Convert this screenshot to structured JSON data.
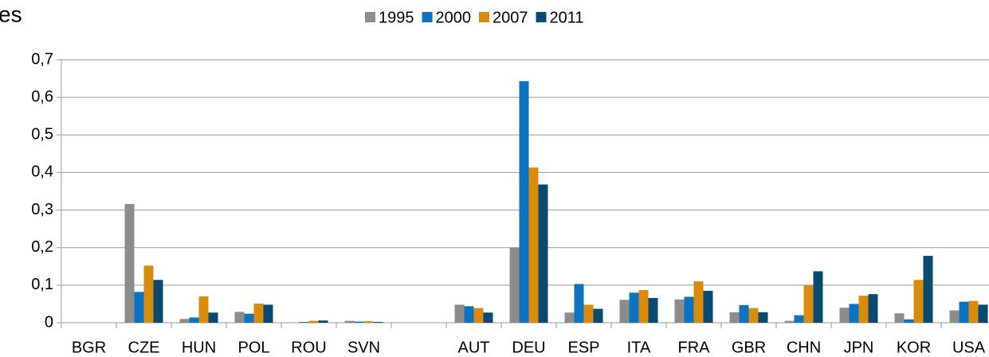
{
  "chart_data": {
    "type": "bar",
    "title": "es",
    "categories": [
      "BGR",
      "CZE",
      "HUN",
      "POL",
      "ROU",
      "SVN",
      null,
      "AUT",
      "DEU",
      "ESP",
      "ITA",
      "FRA",
      "GBR",
      "CHN",
      "JPN",
      "KOR",
      "USA"
    ],
    "series": [
      {
        "name": "1995",
        "color": "#8c8c8c",
        "values": [
          0,
          0.316,
          0.01,
          0.029,
          0.001,
          0.005,
          null,
          0.048,
          0.2,
          0.027,
          0.061,
          0.062,
          0.028,
          0.005,
          0.04,
          0.025,
          0.033
        ]
      },
      {
        "name": "2000",
        "color": "#0c73c2",
        "values": [
          0,
          0.082,
          0.014,
          0.024,
          0.002,
          0.003,
          null,
          0.044,
          0.643,
          0.103,
          0.08,
          0.069,
          0.047,
          0.02,
          0.05,
          0.009,
          0.056
        ]
      },
      {
        "name": "2007",
        "color": "#d98c0b",
        "values": [
          0,
          0.152,
          0.07,
          0.051,
          0.005,
          0.004,
          null,
          0.039,
          0.413,
          0.048,
          0.087,
          0.11,
          0.039,
          0.1,
          0.072,
          0.114,
          0.058
        ]
      },
      {
        "name": "2011",
        "color": "#0a4a70",
        "values": [
          0,
          0.114,
          0.027,
          0.048,
          0.006,
          0.002,
          null,
          0.027,
          0.368,
          0.037,
          0.066,
          0.085,
          0.028,
          0.137,
          0.076,
          0.178,
          0.048
        ]
      }
    ],
    "ylim": [
      0,
      0.7
    ],
    "yticks": [
      0,
      {
        "value": 0.1,
        "label": "0,1"
      },
      {
        "value": 0.2,
        "label": "0,2"
      },
      {
        "value": 0.3,
        "label": "0,3"
      },
      {
        "value": 0.4,
        "label": "0,4"
      },
      {
        "value": 0.5,
        "label": "0,5"
      },
      {
        "value": 0.6,
        "label": "0,6"
      },
      {
        "value": 0.7,
        "label": "0,7"
      }
    ],
    "grid": true,
    "legend": "top"
  }
}
